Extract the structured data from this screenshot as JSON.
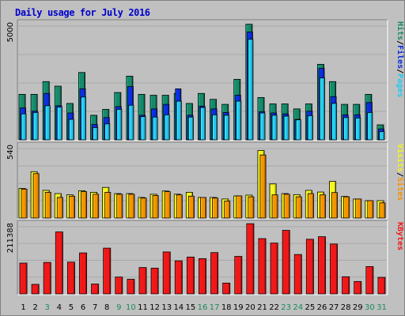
{
  "title": "Daily usage for July 2016",
  "colors": {
    "title": "#0000cc",
    "hits": "#158a6a",
    "files": "#0a2ee0",
    "pages": "#24c8f0",
    "visits": "#f5f520",
    "sites": "#f59200",
    "kbytes": "#f01818",
    "weekday_label": "#000000",
    "weekend_label": "#1a8a5a",
    "panel_bg": "#c0c0c0"
  },
  "chart_data": [
    {
      "type": "bar",
      "panel": "hits-files-pages",
      "max_label": "5000",
      "legend": [
        {
          "name": "Pages",
          "color": "#24c8f0"
        },
        {
          "name": "Files",
          "color": "#0a2ee0"
        },
        {
          "name": "Hits",
          "color": "#158a6a"
        }
      ],
      "categories": [
        "1",
        "2",
        "3",
        "4",
        "5",
        "6",
        "7",
        "8",
        "9",
        "10",
        "11",
        "12",
        "13",
        "14",
        "15",
        "16",
        "17",
        "18",
        "19",
        "20",
        "21",
        "22",
        "23",
        "24",
        "25",
        "26",
        "27",
        "28",
        "29",
        "30",
        "31"
      ],
      "series": [
        {
          "name": "Hits",
          "values": [
            2000,
            2000,
            2560,
            2360,
            1600,
            2960,
            1080,
            1340,
            2080,
            2800,
            2000,
            1960,
            1960,
            2040,
            1600,
            2040,
            1780,
            1560,
            2660,
            5080,
            1860,
            1580,
            1580,
            1360,
            1580,
            3320,
            2560,
            1560,
            1560,
            2000,
            660
          ]
        },
        {
          "name": "Files",
          "values": [
            1400,
            1260,
            2040,
            1500,
            1180,
            2240,
            680,
            980,
            1460,
            2340,
            1080,
            1360,
            1560,
            2240,
            1080,
            1480,
            1360,
            1200,
            1960,
            4740,
            1240,
            1180,
            1140,
            900,
            1260,
            3140,
            1900,
            1100,
            1100,
            1640,
            480
          ]
        },
        {
          "name": "Pages",
          "values": [
            1140,
            1200,
            1500,
            1440,
            900,
            1880,
            540,
            700,
            1340,
            1520,
            1020,
            1000,
            1100,
            1700,
            1000,
            1420,
            1100,
            1080,
            1700,
            4420,
            1180,
            1080,
            1040,
            880,
            1060,
            2720,
            1600,
            980,
            960,
            1200,
            360
          ]
        }
      ]
    },
    {
      "type": "bar",
      "panel": "visits-sites",
      "max_label": "540",
      "legend": [
        {
          "name": "Sites",
          "color": "#f59200"
        },
        {
          "name": "Visits",
          "color": "#f5f520"
        }
      ],
      "categories": [
        "1",
        "2",
        "3",
        "4",
        "5",
        "6",
        "7",
        "8",
        "9",
        "10",
        "11",
        "12",
        "13",
        "14",
        "15",
        "16",
        "17",
        "18",
        "19",
        "20",
        "21",
        "22",
        "23",
        "24",
        "25",
        "26",
        "27",
        "28",
        "29",
        "30",
        "31"
      ],
      "series": [
        {
          "name": "Visits",
          "values": [
            230,
            360,
            215,
            190,
            180,
            212,
            200,
            238,
            190,
            190,
            160,
            185,
            210,
            185,
            200,
            160,
            160,
            148,
            172,
            178,
            525,
            265,
            190,
            182,
            215,
            202,
            285,
            168,
            148,
            135,
            135
          ]
        },
        {
          "name": "Sites",
          "values": [
            225,
            345,
            200,
            160,
            170,
            205,
            185,
            200,
            185,
            185,
            155,
            175,
            205,
            180,
            170,
            160,
            155,
            132,
            172,
            165,
            490,
            180,
            185,
            165,
            190,
            180,
            198,
            165,
            148,
            135,
            118
          ]
        }
      ]
    },
    {
      "type": "bar",
      "panel": "kbytes",
      "max_label": "211388",
      "legend": [
        {
          "name": "KBytes",
          "color": "#f01818"
        }
      ],
      "categories": [
        "1",
        "2",
        "3",
        "4",
        "5",
        "6",
        "7",
        "8",
        "9",
        "10",
        "11",
        "12",
        "13",
        "14",
        "15",
        "16",
        "17",
        "18",
        "19",
        "20",
        "21",
        "22",
        "23",
        "24",
        "25",
        "26",
        "27",
        "28",
        "29",
        "30",
        "31"
      ],
      "series": [
        {
          "name": "KBytes",
          "values": [
            97000,
            30000,
            99000,
            195000,
            100000,
            129000,
            31000,
            144000,
            53000,
            46000,
            83000,
            81000,
            132000,
            104000,
            116000,
            111000,
            130000,
            34000,
            118000,
            221000,
            174000,
            160000,
            200000,
            124000,
            172000,
            180000,
            157000,
            54000,
            39000,
            86000,
            52000
          ]
        }
      ]
    }
  ]
}
